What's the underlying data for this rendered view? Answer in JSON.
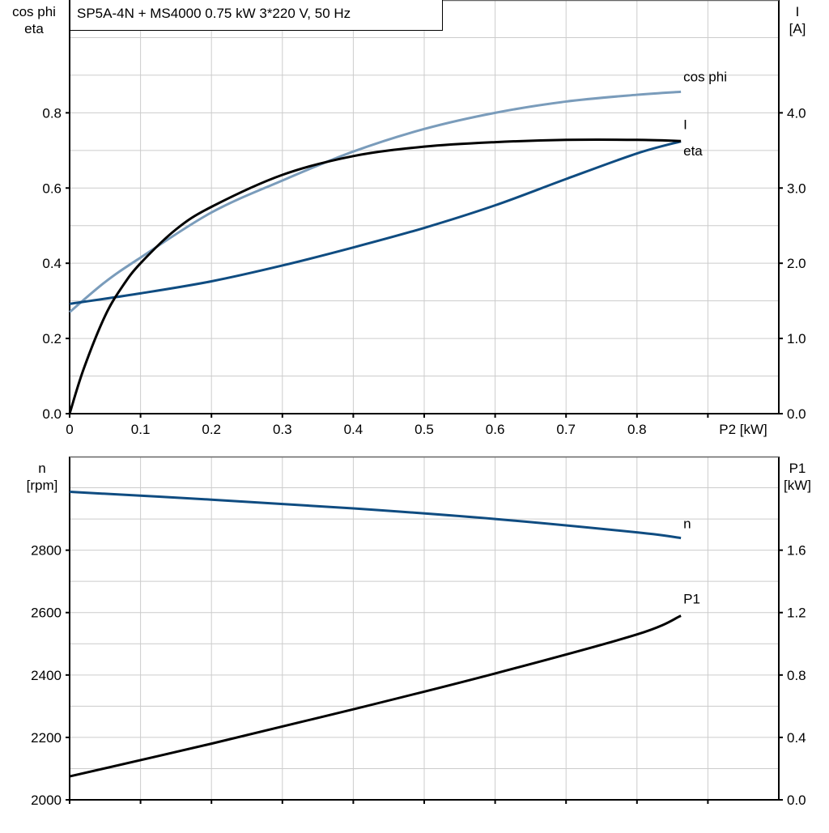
{
  "title": "SP5A-4N + MS4000   0.75 kW   3*220 V, 50 Hz",
  "colors": {
    "eta": "#000000",
    "cos_phi": "#7a9cbb",
    "I": "#0f4c81",
    "n": "#0f4c81",
    "P1": "#000000",
    "grid": "#cccccc"
  },
  "chart_data": [
    {
      "type": "line",
      "xlabel": "P2 [kW]",
      "ylabel_left": [
        "cos phi",
        "eta"
      ],
      "ylabel_right": [
        "I",
        "[A]"
      ],
      "xlim": [
        0,
        1.0
      ],
      "ylim_left": [
        0,
        1.1
      ],
      "ylim_right": [
        0,
        5.5
      ],
      "x_ticks": [
        "0",
        "0.1",
        "0.2",
        "0.3",
        "0.4",
        "0.5",
        "0.6",
        "0.7",
        "0.8"
      ],
      "y_ticks_left": [
        "0.0",
        "0.2",
        "0.4",
        "0.6",
        "0.8"
      ],
      "y_ticks_right": [
        "0.0",
        "1.0",
        "2.0",
        "3.0",
        "4.0"
      ],
      "grid": true,
      "series": [
        {
          "name": "cos phi",
          "axis": "left",
          "x": [
            0,
            0.05,
            0.1,
            0.2,
            0.3,
            0.4,
            0.5,
            0.6,
            0.7,
            0.8,
            0.862
          ],
          "y": [
            0.27,
            0.35,
            0.415,
            0.535,
            0.62,
            0.697,
            0.757,
            0.8,
            0.83,
            0.848,
            0.856
          ]
        },
        {
          "name": "I",
          "axis": "right",
          "x": [
            0,
            0.1,
            0.2,
            0.3,
            0.4,
            0.5,
            0.6,
            0.7,
            0.8,
            0.862
          ],
          "y": [
            1.46,
            1.6,
            1.76,
            1.97,
            2.21,
            2.47,
            2.77,
            3.12,
            3.46,
            3.62
          ]
        },
        {
          "name": "eta",
          "axis": "left",
          "x": [
            0,
            0.02,
            0.05,
            0.075,
            0.1,
            0.15,
            0.2,
            0.3,
            0.4,
            0.5,
            0.6,
            0.7,
            0.8,
            0.862
          ],
          "y": [
            0,
            0.12,
            0.26,
            0.34,
            0.4,
            0.49,
            0.55,
            0.635,
            0.685,
            0.71,
            0.722,
            0.728,
            0.728,
            0.725
          ]
        }
      ]
    },
    {
      "type": "line",
      "ylabel_left": [
        "n",
        "[rpm]"
      ],
      "ylabel_right": [
        "P1",
        "[kW]"
      ],
      "xlim": [
        0,
        1.0
      ],
      "ylim_left": [
        2000,
        3100
      ],
      "ylim_right": [
        0,
        2.2
      ],
      "y_ticks_left": [
        "2000",
        "2200",
        "2400",
        "2600",
        "2800"
      ],
      "y_ticks_right": [
        "0.0",
        "0.4",
        "0.8",
        "1.2",
        "1.6"
      ],
      "grid": true,
      "series": [
        {
          "name": "n",
          "axis": "left",
          "x": [
            0,
            0.2,
            0.4,
            0.6,
            0.8,
            0.862
          ],
          "y": [
            2987,
            2962,
            2934,
            2900,
            2857,
            2839
          ]
        },
        {
          "name": "P1",
          "axis": "right",
          "x": [
            0,
            0.2,
            0.4,
            0.6,
            0.8,
            0.862
          ],
          "y": [
            0.15,
            0.36,
            0.58,
            0.81,
            1.06,
            1.18
          ]
        }
      ]
    }
  ]
}
